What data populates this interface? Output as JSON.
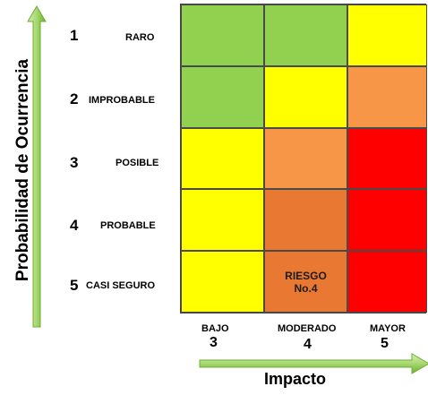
{
  "y_axis_label": "Probabilidad de Ocurrencia",
  "x_axis_label": "Impacto",
  "rows": [
    {
      "num": "1",
      "label": "RARO"
    },
    {
      "num": "2",
      "label": "IMPROBABLE"
    },
    {
      "num": "3",
      "label": "POSIBLE"
    },
    {
      "num": "4",
      "label": "PROBABLE"
    },
    {
      "num": "5",
      "label": "CASI SEGURO"
    }
  ],
  "columns": [
    {
      "label": "BAJO",
      "num": "3"
    },
    {
      "label": "MODERADO",
      "num": "4"
    },
    {
      "label": "MAYOR",
      "num": "5"
    }
  ],
  "cell_colors": [
    [
      "#92d050",
      "#92d050",
      "#ffff00"
    ],
    [
      "#92d050",
      "#ffff00",
      "#f79646"
    ],
    [
      "#ffff00",
      "#f79646",
      "#ff0000"
    ],
    [
      "#ffff00",
      "#e97832",
      "#ff0000"
    ],
    [
      "#ffff00",
      "#e97832",
      "#ff0000"
    ]
  ],
  "highlight": {
    "line1": "RIESGO",
    "line2": "No.4"
  },
  "colors": {
    "arrow_light": "#d8f0b8",
    "arrow_mid": "#a6d86e",
    "arrow_dark": "#6fae34"
  }
}
